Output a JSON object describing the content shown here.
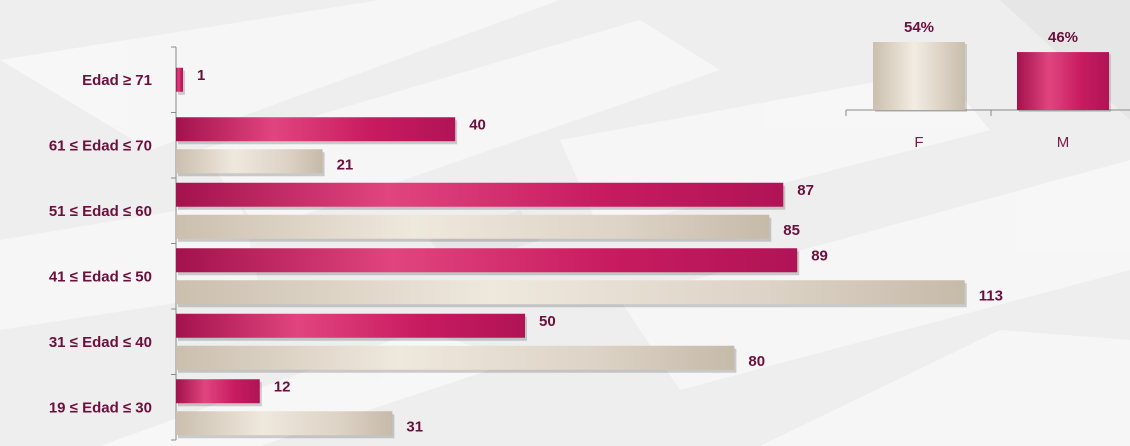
{
  "colors": {
    "magenta": "#c2185b",
    "beige": "#d8cfc2",
    "text": "#6b0f3c",
    "background": "#eeeeee"
  },
  "chart_data": [
    {
      "type": "bar",
      "orientation": "horizontal",
      "categories": [
        "Edad ≥ 71",
        "61 ≤ Edad ≤ 70",
        "51 ≤ Edad ≤ 60",
        "41 ≤ Edad ≤ 50",
        "31 ≤ Edad ≤ 40",
        "19 ≤ Edad ≤ 30"
      ],
      "series": [
        {
          "color": "#c2185b",
          "values": [
            1,
            40,
            87,
            89,
            50,
            12
          ]
        },
        {
          "color": "#d8cfc2",
          "values": [
            null,
            21,
            85,
            113,
            80,
            31
          ]
        }
      ],
      "xlim": [
        0,
        113
      ],
      "grid": false,
      "legend": "none"
    },
    {
      "type": "bar",
      "categories": [
        "F",
        "M"
      ],
      "values": [
        54,
        46
      ],
      "value_labels": [
        "54%",
        "46%"
      ],
      "colors": [
        "#d8cfc2",
        "#c2185b"
      ],
      "ylim": [
        0,
        54
      ],
      "grid": false,
      "legend": "none"
    }
  ]
}
